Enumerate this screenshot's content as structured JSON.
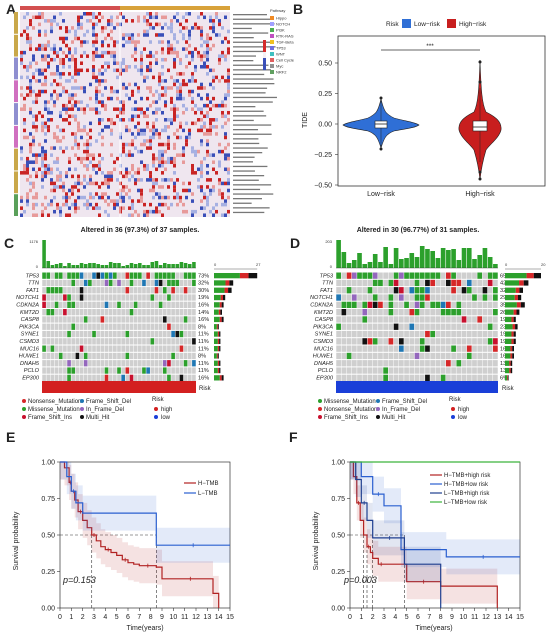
{
  "panels": {
    "A": {
      "label": "A",
      "legend_title": "Pathway",
      "legend_items": [
        "Hippo",
        "NOTCH",
        "PI3K",
        "RTK-RAS",
        "TGF-Beta",
        "TP53",
        "WNT",
        "Cell Cycle",
        "Myc",
        "NRF2"
      ],
      "colors": {
        "low": "#3a4fb8",
        "mid": "#f4f0f4",
        "high": "#d52b2b",
        "bar_low": "#ffffff",
        "bar_high": "#d89a3a",
        "accent": "#c9a84a"
      }
    },
    "B": {
      "label": "B",
      "legend_title": "Risk",
      "legend_low": "Low−risk",
      "legend_high": "High−risk",
      "ylabel": "TIDE",
      "yticks": [
        "0.50",
        "0.25",
        "0.00",
        "−0.25",
        "−0.50"
      ],
      "xticks": [
        "Low−risk",
        "High−risk"
      ],
      "significance": "***",
      "colors": {
        "low": "#2f6fd6",
        "high": "#c81e1e"
      }
    },
    "C": {
      "label": "C",
      "title": "Altered in 36 (97.3%) of 37 samples.",
      "tmb_max": "1176",
      "tmb_min": "0",
      "side_axis": [
        "0",
        "27"
      ],
      "genes": [
        "TP53",
        "TTN",
        "FAT1",
        "NOTCH1",
        "CDKN2A",
        "KMT2D",
        "CASP8",
        "PIK3CA",
        "SYNE1",
        "CSMD3",
        "MUC16",
        "HUWE1",
        "DNAH5",
        "PCLO",
        "EP300"
      ],
      "pcts": [
        "73%",
        "32%",
        "30%",
        "19%",
        "16%",
        "14%",
        "16%",
        "8%",
        "11%",
        "11%",
        "11%",
        "8%",
        "11%",
        "11%",
        "16%"
      ],
      "bar_widths": [
        27,
        12,
        11,
        7,
        6,
        5,
        6,
        3,
        4,
        4,
        4,
        3,
        4,
        4,
        6
      ],
      "risk_label": "Risk",
      "legend": [
        "Nonsense_Mutation",
        "Frame_Shift_Del",
        "Missense_Mutation",
        "In_Frame_Del",
        "Frame_Shift_Ins",
        "Multi_Hit"
      ],
      "risk_title": "Risk",
      "risk_high": "high",
      "risk_low": "low"
    },
    "D": {
      "label": "D",
      "title": "Altered in 30 (96.77%) of 31 samples.",
      "tmb_max": "203",
      "tmb_min": "0",
      "side_axis": [
        "0",
        "20"
      ],
      "genes": [
        "TP53",
        "TTN",
        "FAT1",
        "NOTCH1",
        "CDKN2A",
        "KMT2D",
        "CASP8",
        "PIK3CA",
        "SYNE1",
        "CSMD3",
        "MUC16",
        "HUWE1",
        "DNAH5",
        "PCLO",
        "EP300"
      ],
      "pcts": [
        "65%",
        "42%",
        "32%",
        "29%",
        "35%",
        "26%",
        "19%",
        "23%",
        "19%",
        "19%",
        "16%",
        "16%",
        "13%",
        "13%",
        "6%"
      ],
      "bar_widths": [
        20,
        13,
        10,
        9,
        11,
        8,
        6,
        7,
        6,
        6,
        5,
        5,
        4,
        4,
        2
      ],
      "risk_label": "Risk",
      "legend": [
        "Missense_Mutation",
        "Frame_Shift_Del",
        "Nonsense_Mutation",
        "In_Frame_Del",
        "Frame_Shift_Ins",
        "Multi_Hit"
      ],
      "risk_title": "Risk",
      "risk_high": "high",
      "risk_low": "low"
    },
    "E": {
      "label": "E",
      "ylabel": "Survival probability",
      "xlabel": "Time(years)",
      "pvalue": "p=0.153",
      "legend": [
        "H−TMB",
        "L−TMB"
      ],
      "yticks": [
        "1.00",
        "0.75",
        "0.50",
        "0.25",
        "0.00"
      ],
      "xticks": [
        "0",
        "1",
        "2",
        "3",
        "4",
        "5",
        "6",
        "7",
        "8",
        "9",
        "10",
        "11",
        "12",
        "13",
        "14",
        "15"
      ]
    },
    "F": {
      "label": "F",
      "ylabel": "Survival probability",
      "xlabel": "Time(years)",
      "pvalue": "p=0.003",
      "legend": [
        "H−TMB+high risk",
        "H−TMB+low risk",
        "L−TMB+high risk",
        "L−TMB+low risk"
      ],
      "yticks": [
        "1.00",
        "0.75",
        "0.50",
        "0.25",
        "0.00"
      ],
      "xticks": [
        "0",
        "1",
        "2",
        "3",
        "4",
        "5",
        "6",
        "7",
        "8",
        "9",
        "10",
        "11",
        "12",
        "13",
        "14",
        "15"
      ]
    }
  },
  "chart_data": [
    {
      "type": "line",
      "panel": "E",
      "xlabel": "Time(years)",
      "ylabel": "Survival probability",
      "xlim": [
        0,
        15
      ],
      "ylim": [
        0,
        1
      ],
      "series": [
        {
          "name": "H−TMB",
          "color": "#b22222",
          "x": [
            0,
            0.4,
            0.8,
            1.0,
            1.3,
            1.6,
            2.0,
            2.4,
            2.8,
            3.2,
            3.6,
            4.0,
            4.5,
            5.0,
            5.5,
            6.0,
            6.5,
            7.0,
            8.5,
            9.0,
            10.0,
            13.0,
            13.5,
            14.0
          ],
          "y": [
            1.0,
            0.96,
            0.86,
            0.8,
            0.74,
            0.66,
            0.6,
            0.55,
            0.5,
            0.46,
            0.42,
            0.4,
            0.38,
            0.36,
            0.33,
            0.31,
            0.3,
            0.29,
            0.28,
            0.2,
            0.2,
            0.2,
            0.1,
            0.0
          ]
        },
        {
          "name": "L−TMB",
          "color": "#2a5fd0",
          "x": [
            0,
            0.6,
            1.0,
            1.4,
            2.0,
            8.5,
            15.0
          ],
          "y": [
            1.0,
            0.9,
            0.8,
            0.72,
            0.65,
            0.43,
            0.43
          ]
        }
      ]
    },
    {
      "type": "line",
      "panel": "F",
      "xlabel": "Time(years)",
      "ylabel": "Survival probability",
      "xlim": [
        0,
        15
      ],
      "ylim": [
        0,
        1
      ],
      "series": [
        {
          "name": "H−TMB+high risk",
          "color": "#b22222",
          "x": [
            0,
            0.3,
            0.6,
            0.9,
            1.2,
            1.5,
            1.8,
            2.0,
            2.5,
            3.0,
            4.5,
            5.0,
            8.0,
            12.5,
            13.0
          ],
          "y": [
            1.0,
            0.9,
            0.72,
            0.6,
            0.5,
            0.42,
            0.38,
            0.34,
            0.3,
            0.3,
            0.3,
            0.18,
            0.15,
            0.15,
            0.0
          ]
        },
        {
          "name": "H−TMB+low risk",
          "color": "#2a5fd0",
          "x": [
            0,
            1.0,
            2.0,
            3.0,
            4.5,
            8.5,
            15.0
          ],
          "y": [
            1.0,
            0.9,
            0.78,
            0.7,
            0.4,
            0.35,
            0.35
          ]
        },
        {
          "name": "L−TMB+high risk",
          "color": "#1f3f8f",
          "x": [
            0,
            0.5,
            1.0,
            1.5,
            2.0,
            3.0,
            4.0,
            4.8,
            8.0
          ],
          "y": [
            1.0,
            0.88,
            0.72,
            0.6,
            0.48,
            0.48,
            0.48,
            0.3,
            0.0
          ]
        },
        {
          "name": "L−TMB+low risk",
          "color": "#3cb43c",
          "x": [
            0,
            15.0
          ],
          "y": [
            1.0,
            1.0
          ]
        }
      ]
    },
    {
      "type": "bar",
      "panel": "C-side",
      "categories": [
        "TP53",
        "TTN",
        "FAT1",
        "NOTCH1",
        "CDKN2A",
        "KMT2D",
        "CASP8",
        "PIK3CA",
        "SYNE1",
        "CSMD3",
        "MUC16",
        "HUWE1",
        "DNAH5",
        "PCLO",
        "EP300"
      ],
      "values": [
        27,
        12,
        11,
        7,
        6,
        5,
        6,
        3,
        4,
        4,
        4,
        3,
        4,
        4,
        6
      ],
      "xlim": [
        0,
        27
      ]
    },
    {
      "type": "bar",
      "panel": "D-side",
      "categories": [
        "TP53",
        "TTN",
        "FAT1",
        "NOTCH1",
        "CDKN2A",
        "KMT2D",
        "CASP8",
        "PIK3CA",
        "SYNE1",
        "CSMD3",
        "MUC16",
        "HUWE1",
        "DNAH5",
        "PCLO",
        "EP300"
      ],
      "values": [
        20,
        13,
        10,
        9,
        11,
        8,
        6,
        7,
        6,
        6,
        5,
        5,
        4,
        4,
        2
      ],
      "xlim": [
        0,
        20
      ]
    }
  ]
}
